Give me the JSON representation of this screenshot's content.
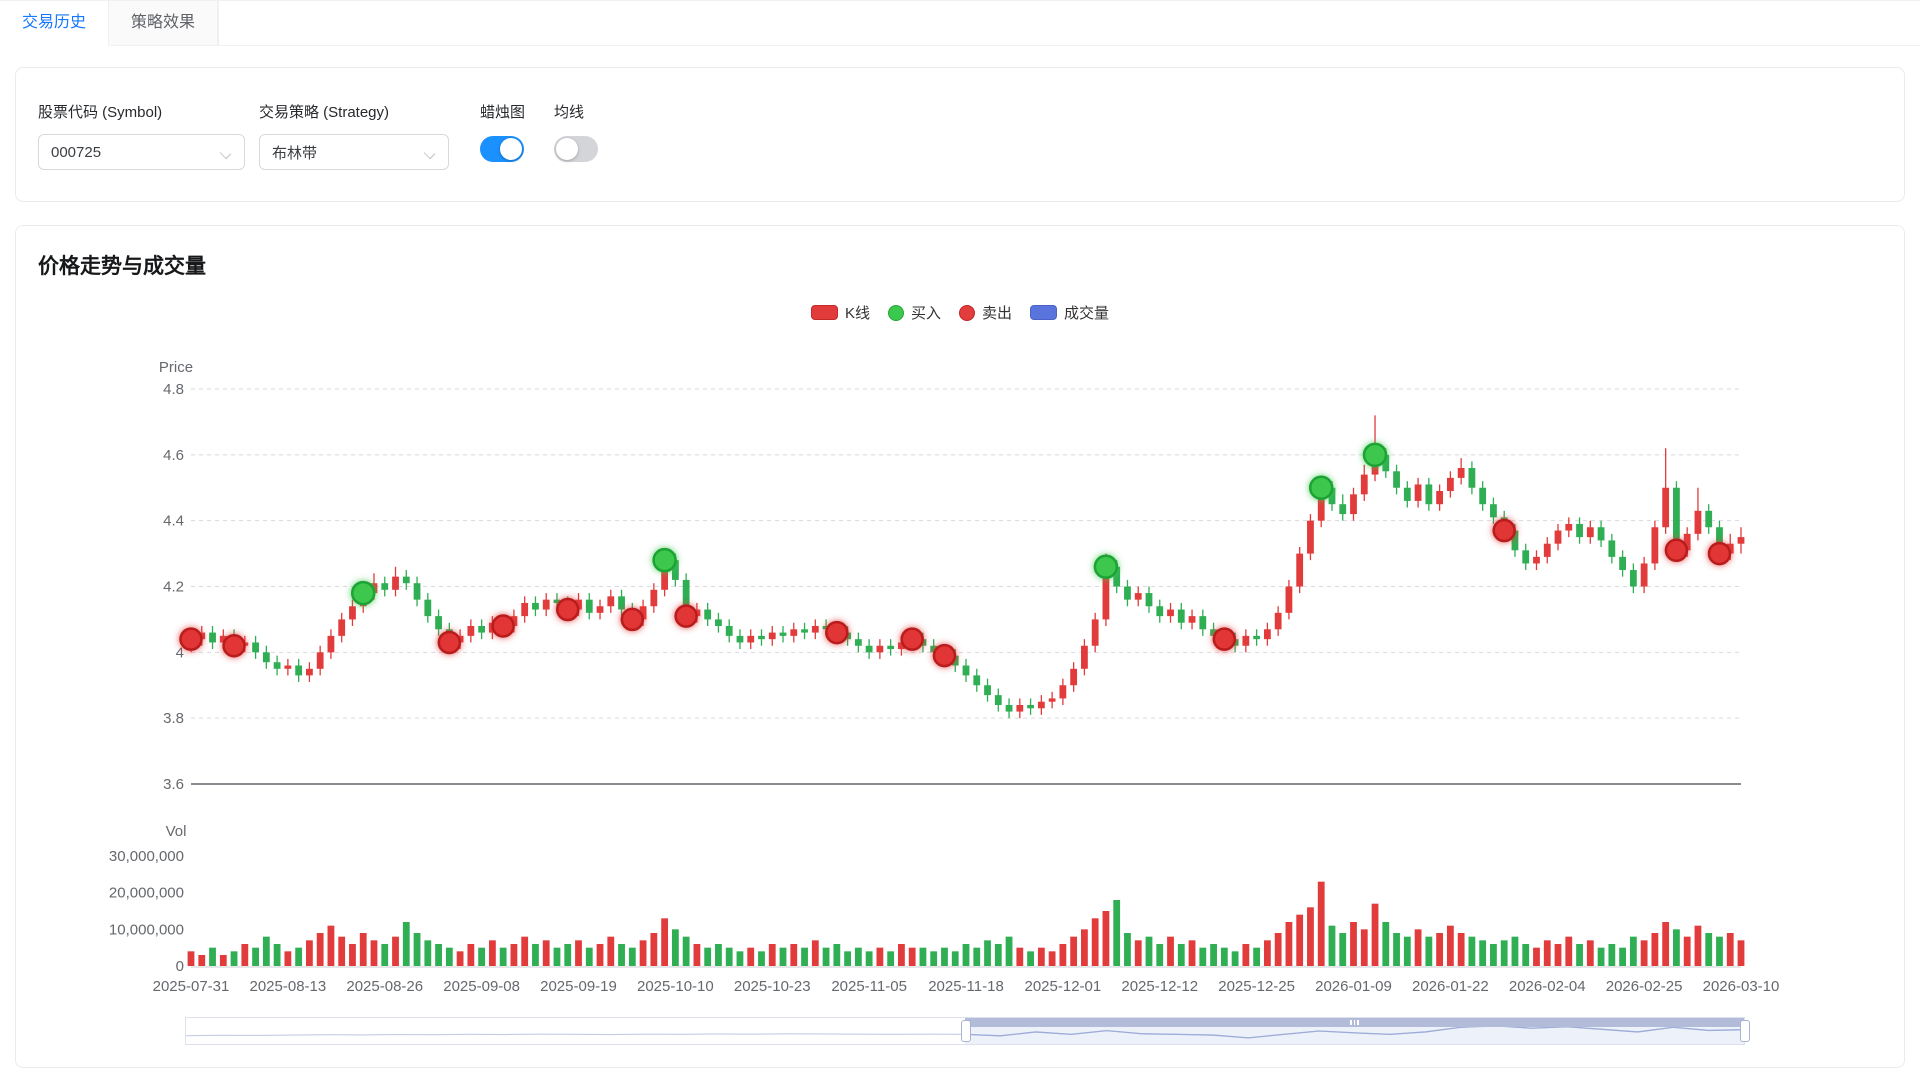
{
  "tabs": {
    "items": [
      {
        "label": "交易历史",
        "active": true
      },
      {
        "label": "策略效果",
        "active": false
      }
    ]
  },
  "filters": {
    "symbol": {
      "label": "股票代码 (Symbol)",
      "value": "000725"
    },
    "strategy": {
      "label": "交易策略 (Strategy)",
      "value": "布林带"
    },
    "candlestick_toggle": {
      "label": "蜡烛图",
      "on": true
    },
    "ma_toggle": {
      "label": "均线",
      "on": false
    }
  },
  "chart": {
    "title": "价格走势与成交量",
    "legend": [
      {
        "label": "K线",
        "shape": "rect",
        "color": "#e23b3b",
        "border": "#c52a2a"
      },
      {
        "label": "买入",
        "shape": "circle",
        "color": "#3cc84e",
        "border": "#21a837"
      },
      {
        "label": "卖出",
        "shape": "circle",
        "color": "#e23c3c",
        "border": "#c02626"
      },
      {
        "label": "成交量",
        "shape": "rect",
        "color": "#5a74dd",
        "border": "#4a62c4"
      }
    ]
  },
  "chart_data": {
    "type": "candlestick+volume",
    "price_axis": {
      "name": "Price",
      "tick_labels": [
        "4.8",
        "4.6",
        "4.4",
        "4.2",
        "4",
        "3.8",
        "3.6"
      ],
      "max": 4.8,
      "min": 3.6,
      "grid": "dashed"
    },
    "volume_axis": {
      "name": "Vol",
      "tick_labels": [
        "30,000,000",
        "20,000,000",
        "10,000,000",
        "0"
      ],
      "max": 30000000
    },
    "x_tick_labels": [
      "2025-07-31",
      "2025-08-13",
      "2025-08-26",
      "2025-09-08",
      "2025-09-19",
      "2025-10-10",
      "2025-10-23",
      "2025-11-05",
      "2025-11-18",
      "2025-12-01",
      "2025-12-12",
      "2025-12-25",
      "2026-01-09",
      "2026-01-22",
      "2026-02-04",
      "2026-02-25",
      "2026-03-10"
    ],
    "x_tick_every": 9,
    "colors": {
      "up": "#e23b3b",
      "down": "#2fae54",
      "buy_fill": "#3cc84e",
      "buy_stroke": "#1ea235",
      "sell_fill": "#e23434",
      "sell_stroke": "#b91c1c"
    },
    "candles": [
      [
        4.02,
        4.04,
        4.0,
        4.06
      ],
      [
        4.04,
        4.06,
        4.02,
        4.08
      ],
      [
        4.06,
        4.03,
        4.01,
        4.08
      ],
      [
        4.03,
        4.05,
        4.01,
        4.07
      ],
      [
        4.05,
        4.02,
        4.0,
        4.07
      ],
      [
        4.02,
        4.03,
        4.0,
        4.05
      ],
      [
        4.03,
        4.0,
        3.98,
        4.05
      ],
      [
        4.0,
        3.97,
        3.95,
        4.02
      ],
      [
        3.97,
        3.95,
        3.93,
        3.99
      ],
      [
        3.95,
        3.96,
        3.93,
        3.98
      ],
      [
        3.96,
        3.93,
        3.91,
        3.98
      ],
      [
        3.93,
        3.95,
        3.91,
        3.97
      ],
      [
        3.95,
        4.0,
        3.93,
        4.02
      ],
      [
        4.0,
        4.05,
        3.98,
        4.07
      ],
      [
        4.05,
        4.1,
        4.03,
        4.12
      ],
      [
        4.1,
        4.14,
        4.08,
        4.16
      ],
      [
        4.14,
        4.18,
        4.12,
        4.21
      ],
      [
        4.18,
        4.21,
        4.16,
        4.24
      ],
      [
        4.21,
        4.19,
        4.17,
        4.23
      ],
      [
        4.19,
        4.23,
        4.17,
        4.26
      ],
      [
        4.23,
        4.21,
        4.19,
        4.25
      ],
      [
        4.21,
        4.16,
        4.14,
        4.23
      ],
      [
        4.16,
        4.11,
        4.09,
        4.18
      ],
      [
        4.11,
        4.07,
        4.05,
        4.13
      ],
      [
        4.07,
        4.03,
        4.01,
        4.09
      ],
      [
        4.03,
        4.05,
        4.01,
        4.07
      ],
      [
        4.05,
        4.08,
        4.03,
        4.1
      ],
      [
        4.08,
        4.06,
        4.04,
        4.1
      ],
      [
        4.06,
        4.09,
        4.04,
        4.11
      ],
      [
        4.09,
        4.08,
        4.06,
        4.11
      ],
      [
        4.08,
        4.11,
        4.06,
        4.13
      ],
      [
        4.11,
        4.15,
        4.09,
        4.17
      ],
      [
        4.15,
        4.13,
        4.11,
        4.17
      ],
      [
        4.13,
        4.16,
        4.11,
        4.18
      ],
      [
        4.16,
        4.15,
        4.13,
        4.18
      ],
      [
        4.15,
        4.13,
        4.11,
        4.17
      ],
      [
        4.13,
        4.16,
        4.11,
        4.18
      ],
      [
        4.16,
        4.12,
        4.1,
        4.18
      ],
      [
        4.12,
        4.14,
        4.1,
        4.16
      ],
      [
        4.14,
        4.17,
        4.12,
        4.19
      ],
      [
        4.17,
        4.13,
        4.11,
        4.19
      ],
      [
        4.13,
        4.1,
        4.08,
        4.15
      ],
      [
        4.1,
        4.14,
        4.08,
        4.16
      ],
      [
        4.14,
        4.19,
        4.12,
        4.21
      ],
      [
        4.19,
        4.28,
        4.17,
        4.3
      ],
      [
        4.28,
        4.22,
        4.2,
        4.3
      ],
      [
        4.22,
        4.11,
        4.09,
        4.24
      ],
      [
        4.11,
        4.13,
        4.09,
        4.15
      ],
      [
        4.13,
        4.1,
        4.08,
        4.15
      ],
      [
        4.1,
        4.08,
        4.06,
        4.12
      ],
      [
        4.08,
        4.05,
        4.03,
        4.1
      ],
      [
        4.05,
        4.03,
        4.01,
        4.07
      ],
      [
        4.03,
        4.05,
        4.01,
        4.07
      ],
      [
        4.05,
        4.04,
        4.02,
        4.07
      ],
      [
        4.04,
        4.06,
        4.02,
        4.08
      ],
      [
        4.06,
        4.05,
        4.03,
        4.08
      ],
      [
        4.05,
        4.07,
        4.03,
        4.09
      ],
      [
        4.07,
        4.06,
        4.04,
        4.09
      ],
      [
        4.06,
        4.08,
        4.04,
        4.1
      ],
      [
        4.08,
        4.07,
        4.05,
        4.1
      ],
      [
        4.07,
        4.06,
        4.04,
        4.09
      ],
      [
        4.06,
        4.04,
        4.02,
        4.08
      ],
      [
        4.04,
        4.02,
        4.0,
        4.06
      ],
      [
        4.02,
        4.0,
        3.98,
        4.04
      ],
      [
        4.0,
        4.02,
        3.98,
        4.04
      ],
      [
        4.02,
        4.01,
        3.99,
        4.04
      ],
      [
        4.01,
        4.03,
        3.99,
        4.05
      ],
      [
        4.03,
        4.04,
        4.01,
        4.06
      ],
      [
        4.04,
        4.02,
        4.0,
        4.06
      ],
      [
        4.02,
        4.0,
        3.98,
        4.04
      ],
      [
        4.0,
        3.99,
        3.97,
        4.02
      ],
      [
        3.99,
        3.96,
        3.94,
        4.01
      ],
      [
        3.96,
        3.93,
        3.91,
        3.98
      ],
      [
        3.93,
        3.9,
        3.88,
        3.95
      ],
      [
        3.9,
        3.87,
        3.85,
        3.92
      ],
      [
        3.87,
        3.84,
        3.82,
        3.89
      ],
      [
        3.84,
        3.82,
        3.8,
        3.86
      ],
      [
        3.82,
        3.84,
        3.8,
        3.86
      ],
      [
        3.84,
        3.83,
        3.81,
        3.86
      ],
      [
        3.83,
        3.85,
        3.81,
        3.87
      ],
      [
        3.85,
        3.86,
        3.83,
        3.88
      ],
      [
        3.86,
        3.9,
        3.84,
        3.92
      ],
      [
        3.9,
        3.95,
        3.88,
        3.97
      ],
      [
        3.95,
        4.02,
        3.93,
        4.04
      ],
      [
        4.02,
        4.1,
        4.0,
        4.12
      ],
      [
        4.1,
        4.26,
        4.08,
        4.3
      ],
      [
        4.26,
        4.2,
        4.18,
        4.28
      ],
      [
        4.2,
        4.16,
        4.14,
        4.22
      ],
      [
        4.16,
        4.18,
        4.14,
        4.2
      ],
      [
        4.18,
        4.14,
        4.12,
        4.2
      ],
      [
        4.14,
        4.11,
        4.09,
        4.16
      ],
      [
        4.11,
        4.13,
        4.09,
        4.15
      ],
      [
        4.13,
        4.09,
        4.07,
        4.15
      ],
      [
        4.09,
        4.11,
        4.07,
        4.13
      ],
      [
        4.11,
        4.07,
        4.05,
        4.13
      ],
      [
        4.07,
        4.05,
        4.03,
        4.09
      ],
      [
        4.05,
        4.04,
        4.02,
        4.07
      ],
      [
        4.04,
        4.02,
        4.0,
        4.06
      ],
      [
        4.02,
        4.05,
        4.0,
        4.07
      ],
      [
        4.05,
        4.04,
        4.02,
        4.07
      ],
      [
        4.04,
        4.07,
        4.02,
        4.09
      ],
      [
        4.07,
        4.12,
        4.05,
        4.14
      ],
      [
        4.12,
        4.2,
        4.1,
        4.22
      ],
      [
        4.2,
        4.3,
        4.18,
        4.32
      ],
      [
        4.3,
        4.4,
        4.28,
        4.42
      ],
      [
        4.4,
        4.5,
        4.38,
        4.53
      ],
      [
        4.5,
        4.45,
        4.43,
        4.52
      ],
      [
        4.45,
        4.42,
        4.4,
        4.48
      ],
      [
        4.42,
        4.48,
        4.4,
        4.5
      ],
      [
        4.48,
        4.54,
        4.46,
        4.57
      ],
      [
        4.54,
        4.6,
        4.52,
        4.72
      ],
      [
        4.6,
        4.55,
        4.53,
        4.62
      ],
      [
        4.55,
        4.5,
        4.48,
        4.57
      ],
      [
        4.5,
        4.46,
        4.44,
        4.52
      ],
      [
        4.46,
        4.51,
        4.44,
        4.53
      ],
      [
        4.51,
        4.45,
        4.43,
        4.53
      ],
      [
        4.45,
        4.49,
        4.43,
        4.51
      ],
      [
        4.49,
        4.53,
        4.47,
        4.55
      ],
      [
        4.53,
        4.56,
        4.51,
        4.59
      ],
      [
        4.56,
        4.5,
        4.48,
        4.58
      ],
      [
        4.5,
        4.45,
        4.43,
        4.52
      ],
      [
        4.45,
        4.41,
        4.39,
        4.47
      ],
      [
        4.41,
        4.37,
        4.35,
        4.43
      ],
      [
        4.37,
        4.31,
        4.29,
        4.39
      ],
      [
        4.31,
        4.27,
        4.25,
        4.33
      ],
      [
        4.27,
        4.29,
        4.25,
        4.31
      ],
      [
        4.29,
        4.33,
        4.27,
        4.35
      ],
      [
        4.33,
        4.37,
        4.31,
        4.39
      ],
      [
        4.37,
        4.39,
        4.35,
        4.41
      ],
      [
        4.39,
        4.35,
        4.33,
        4.41
      ],
      [
        4.35,
        4.38,
        4.33,
        4.4
      ],
      [
        4.38,
        4.34,
        4.32,
        4.4
      ],
      [
        4.34,
        4.29,
        4.27,
        4.36
      ],
      [
        4.29,
        4.25,
        4.23,
        4.31
      ],
      [
        4.25,
        4.2,
        4.18,
        4.27
      ],
      [
        4.2,
        4.27,
        4.18,
        4.29
      ],
      [
        4.27,
        4.38,
        4.25,
        4.4
      ],
      [
        4.38,
        4.5,
        4.36,
        4.62
      ],
      [
        4.5,
        4.31,
        4.28,
        4.52
      ],
      [
        4.31,
        4.36,
        4.29,
        4.38
      ],
      [
        4.36,
        4.43,
        4.34,
        4.5
      ],
      [
        4.43,
        4.38,
        4.36,
        4.45
      ],
      [
        4.38,
        4.3,
        4.27,
        4.4
      ],
      [
        4.3,
        4.33,
        4.28,
        4.36
      ],
      [
        4.33,
        4.35,
        4.3,
        4.38
      ]
    ],
    "volumes": [
      4000000.0,
      3000000.0,
      5000000.0,
      3000000.0,
      4000000.0,
      6000000.0,
      5000000.0,
      8000000.0,
      6000000.0,
      4000000.0,
      5000000.0,
      7000000.0,
      9000000.0,
      11000000.0,
      8000000.0,
      6000000.0,
      9000000.0,
      7000000.0,
      6000000.0,
      8000000.0,
      12000000.0,
      9000000.0,
      7000000.0,
      6000000.0,
      5000000.0,
      4000000.0,
      6000000.0,
      5000000.0,
      7000000.0,
      5000000.0,
      6000000.0,
      8000000.0,
      6000000.0,
      7000000.0,
      5000000.0,
      6000000.0,
      7000000.0,
      5000000.0,
      6000000.0,
      8000000.0,
      6000000.0,
      5000000.0,
      7000000.0,
      9000000.0,
      13000000.0,
      10000000.0,
      8000000.0,
      6000000.0,
      5000000.0,
      6000000.0,
      5000000.0,
      4000000.0,
      5000000.0,
      4000000.0,
      6000000.0,
      5000000.0,
      6000000.0,
      5000000.0,
      7000000.0,
      5000000.0,
      6000000.0,
      4000000.0,
      5000000.0,
      4000000.0,
      5000000.0,
      4000000.0,
      6000000.0,
      5000000.0,
      5000000.0,
      4000000.0,
      5000000.0,
      4000000.0,
      6000000.0,
      5000000.0,
      7000000.0,
      6000000.0,
      8000000.0,
      5000000.0,
      4000000.0,
      5000000.0,
      4000000.0,
      6000000.0,
      8000000.0,
      10000000.0,
      13000000.0,
      15000000.0,
      18000000.0,
      9000000.0,
      7000000.0,
      8000000.0,
      6000000.0,
      8000000.0,
      6000000.0,
      7000000.0,
      5000000.0,
      6000000.0,
      5000000.0,
      4000000.0,
      6000000.0,
      5000000.0,
      7000000.0,
      9000000.0,
      12000000.0,
      14000000.0,
      16000000.0,
      23000000.0,
      11000000.0,
      9000000.0,
      12000000.0,
      10000000.0,
      17000000.0,
      12000000.0,
      9000000.0,
      8000000.0,
      10000000.0,
      8000000.0,
      9000000.0,
      11000000.0,
      9000000.0,
      8000000.0,
      7000000.0,
      6000000.0,
      7000000.0,
      8000000.0,
      6000000.0,
      5000000.0,
      7000000.0,
      6000000.0,
      8000000.0,
      6000000.0,
      7000000.0,
      5000000.0,
      6000000.0,
      5000000.0,
      8000000.0,
      7000000.0,
      9000000.0,
      12000000.0,
      10000000.0,
      8000000.0,
      11000000.0,
      9000000.0,
      8000000.0,
      9000000.0,
      7000000.0
    ],
    "buy_points": [
      {
        "index": 16,
        "price": 4.18
      },
      {
        "index": 44,
        "price": 4.28
      },
      {
        "index": 85,
        "price": 4.26
      },
      {
        "index": 105,
        "price": 4.5
      },
      {
        "index": 110,
        "price": 4.6
      }
    ],
    "sell_points": [
      {
        "index": 0,
        "price": 4.04
      },
      {
        "index": 4,
        "price": 4.02
      },
      {
        "index": 24,
        "price": 4.03
      },
      {
        "index": 29,
        "price": 4.08
      },
      {
        "index": 35,
        "price": 4.13
      },
      {
        "index": 41,
        "price": 4.1
      },
      {
        "index": 46,
        "price": 4.11
      },
      {
        "index": 60,
        "price": 4.06
      },
      {
        "index": 67,
        "price": 4.04
      },
      {
        "index": 70,
        "price": 3.99
      },
      {
        "index": 96,
        "price": 4.04
      },
      {
        "index": 122,
        "price": 4.37
      },
      {
        "index": 138,
        "price": 4.31
      },
      {
        "index": 142,
        "price": 4.3
      }
    ]
  },
  "slider": {
    "start_pct": 50,
    "end_pct": 100,
    "shadow": [
      0.3,
      0.32,
      0.31,
      0.33,
      0.35,
      0.34,
      0.36,
      0.35,
      0.37,
      0.36,
      0.38,
      0.37,
      0.36,
      0.38,
      0.37,
      0.39,
      0.38,
      0.4,
      0.39,
      0.38,
      0.37,
      0.38,
      0.37,
      0.29,
      0.5,
      0.37,
      0.57,
      0.4,
      0.37,
      0.33,
      0.18,
      0.37,
      0.55,
      0.45,
      0.37,
      0.5,
      0.75,
      0.83,
      0.7,
      0.78,
      0.64,
      0.5,
      0.75,
      0.58,
      0.62
    ]
  }
}
